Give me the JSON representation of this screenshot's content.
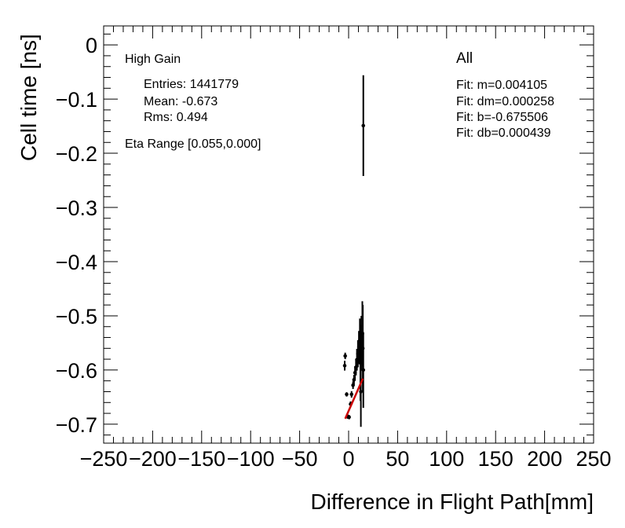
{
  "chart_data": {
    "type": "scatter",
    "title": "",
    "xlabel": "Difference in Flight Path[mm]",
    "ylabel": "Cell time [ns]",
    "xlim": [
      -250,
      250
    ],
    "ylim": [
      -0.735,
      0.035
    ],
    "xticks": [
      -250,
      -200,
      -150,
      -100,
      -50,
      0,
      50,
      100,
      150,
      200,
      250
    ],
    "xtick_labels": [
      "−250",
      "−200",
      "−150",
      "−100",
      "−50",
      "0",
      "50",
      "100",
      "150",
      "200",
      "250"
    ],
    "yticks": [
      0,
      -0.1,
      -0.2,
      -0.3,
      -0.4,
      -0.5,
      -0.6,
      -0.7
    ],
    "ytick_labels": [
      "0",
      "−0.1",
      "−0.2",
      "−0.3",
      "−0.4",
      "−0.5",
      "−0.6",
      "−0.7"
    ],
    "grid": false,
    "series": [
      {
        "points": [
          {
            "x": -3.5,
            "y": -0.574,
            "err": 0.006
          },
          {
            "x": -4.0,
            "y": -0.592,
            "err": 0.009
          },
          {
            "x": -2.0,
            "y": -0.645,
            "err": 0.004
          },
          {
            "x": -1.0,
            "y": -0.686,
            "err": 0.004
          },
          {
            "x": 0.5,
            "y": -0.687,
            "err": 0.004
          },
          {
            "x": 2.0,
            "y": -0.663,
            "err": 0.005
          },
          {
            "x": 3.0,
            "y": -0.645,
            "err": 0.006
          },
          {
            "x": 4.5,
            "y": -0.628,
            "err": 0.007
          },
          {
            "x": 5.5,
            "y": -0.618,
            "err": 0.009
          },
          {
            "x": 6.5,
            "y": -0.605,
            "err": 0.012
          },
          {
            "x": 7.5,
            "y": -0.595,
            "err": 0.015
          },
          {
            "x": 8.5,
            "y": -0.581,
            "err": 0.02
          },
          {
            "x": 9.5,
            "y": -0.57,
            "err": 0.025
          },
          {
            "x": 10.5,
            "y": -0.558,
            "err": 0.03
          },
          {
            "x": 11.5,
            "y": -0.545,
            "err": 0.04
          },
          {
            "x": 12.0,
            "y": -0.587,
            "err": 0.07
          },
          {
            "x": 12.5,
            "y": -0.64,
            "err": 0.065
          },
          {
            "x": 13.0,
            "y": -0.55,
            "err": 0.05
          },
          {
            "x": 14.0,
            "y": -0.533,
            "err": 0.06
          },
          {
            "x": 14.5,
            "y": -0.56,
            "err": 0.08
          },
          {
            "x": 15.0,
            "y": -0.6,
            "err": 0.07
          },
          {
            "x": 15.0,
            "y": -0.149,
            "err": 0.093
          }
        ]
      }
    ],
    "fit_line": {
      "x": [
        -3.5,
        14.5
      ],
      "color": "#cc0000",
      "m": 0.004105,
      "b": -0.675506
    },
    "stats_box": {
      "title": "High Gain",
      "entries": "Entries: 1441779",
      "mean": "Mean: -0.673",
      "rms": "Rms: 0.494",
      "eta_range": "Eta Range [0.055,0.000]"
    },
    "fit_box": {
      "title": "All",
      "lines": [
        "Fit: m=0.004105",
        "Fit: dm=0.000258",
        "Fit: b=-0.675506",
        "Fit: db=0.000439"
      ]
    }
  }
}
